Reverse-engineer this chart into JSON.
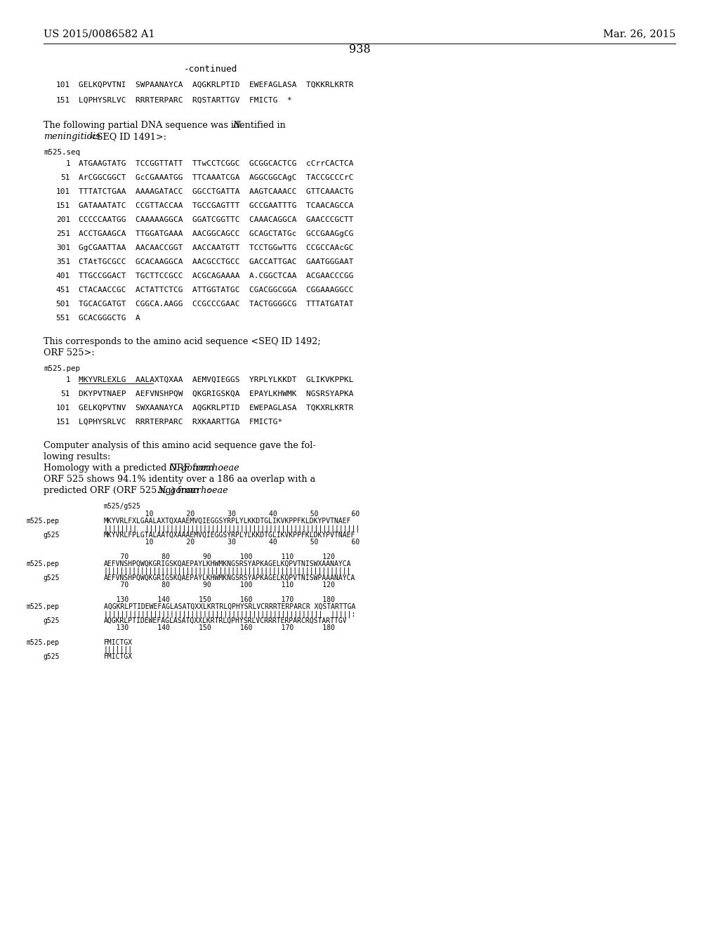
{
  "header_left": "US 2015/0086582 A1",
  "header_right": "Mar. 26, 2015",
  "page_number": "938",
  "continued": "-continued",
  "background_color": "#ffffff",
  "text_color": "#000000",
  "seq_lines_101": [
    [
      "101",
      "GELKQPVTNI  SWPAANAYCA  AQGKRLPTID  EWEFAGLASA  TQKKRLKRTR"
    ],
    [
      "151",
      "LQPHYSRLVC  RRRTERPARC  RQSTARTTGV  FMICTG  *"
    ]
  ],
  "para1_normal": "The following partial DNA sequence was identified in ",
  "para1_italic": "N.",
  "para1b_italic": "meningitidis",
  "para1b_normal": " <SEQ ID 1491>:",
  "label_seq": "m525.seq",
  "dna_lines": [
    [
      "1",
      "ATGAAGTATG  TCCGGTTATT  TTwCCTCGGC  GCGGCACTCG  cCrrCACTCA"
    ],
    [
      "51",
      "ArCGGCGGCT  GcCGAAATGG  TTCAAATCGA  AGGCGGCAgC  TACCGCCCrC"
    ],
    [
      "101",
      "TTTATCTGAA  AAAAGATACC  GGCCTGATTA  AAGTCAAACC  GTTCAAACTG"
    ],
    [
      "151",
      "GATAAATATC  CCGTTACCAA  TGCCGAGTTT  GCCGAATTTG  TCAACAGCCA"
    ],
    [
      "201",
      "CCCCCAATGG  CAAAAAGGCA  GGATCGGTTC  CAAACAGGCA  GAACCCGCTT"
    ],
    [
      "251",
      "ACCTGAAGCA  TTGGATGAAA  AACGGCAGCC  GCAGCTATGc  GCCGAAGgCG"
    ],
    [
      "301",
      "GgCGAATTAA  AACAACCGGT  AACCAATGTT  TCCTGGwTTG  CCGCCAAcGC"
    ],
    [
      "351",
      "CTAtTGCGCC  GCACAAGGCA  AACGCCTGCC  GACCATTGAC  GAATGGGAAT"
    ],
    [
      "401",
      "TTGCCGGACT  TGCTTCCGCC  ACGCAGAAAA  A.CGGCTCAA  ACGAACCCGG"
    ],
    [
      "451",
      "CTACAACCGC  ACTATTCTCG  ATTGGTATGC  CGACGGCGGA  CGGAAAGGCC"
    ],
    [
      "501",
      "TGCACGATGT  CGGCA.AAGG  CCGCCCGAAC  TACTGGGGCG  TTTATGATAT"
    ],
    [
      "551",
      "GCACGGGCTG  A"
    ]
  ],
  "para2_line1": "This corresponds to the amino acid sequence <SEQ ID 1492;",
  "para2_line2": "ORF 525>:",
  "label_pep": "m525.pep",
  "pep_lines": [
    [
      "1",
      "MKYVRLEXLG  AALAXTQXAA  AEMVQIEGGS  YRPLYLKKDT  GLIKVKPPKL",
      true
    ],
    [
      "51",
      "DKYPVTNAEP  AEFVNSHPQW  QKGRIGSKQA  EPAYLKHWMK  NGSRSYAPKA",
      false
    ],
    [
      "101",
      "GELKQPVTNV  SWXAANAYCA  AQGKRLPTID  EWEPAGLASA  TQKXRLKRTR",
      false
    ],
    [
      "151",
      "LQPHYSRLVC  RRRTERPARC  RXKAARTTGA  FMICTG*",
      false
    ]
  ],
  "comp_line1": "Computer analysis of this amino acid sequence gave the fol-",
  "comp_line2": "lowing results:",
  "comp_line3_pre": "Homology with a predicted ORF from ",
  "comp_line3_ital": "N. gonorrhoeae",
  "comp_line4": "ORF 525 shows 94.1% identity over a 186 aa overlap with a",
  "comp_line5_pre": "predicted ORF (ORF 525.ng) from ",
  "comp_line5_ital": "N. gonorrhoeae",
  "comp_line5_post": ":",
  "align_title": "m525/g525",
  "align_blocks": [
    {
      "ruler_pre": "          10        20        30        40        50        60",
      "rows": [
        [
          "m525.pep",
          "MKYVRLFXLGAALAXTQXAAEMVQIEGGSYRPLYLKKDTGLIKVKPPFKLDKYPVTNAEF"
        ],
        [
          "",
          "||||||||  ||||||||||||||||||||||||||||||||||||||||||||||||||||"
        ],
        [
          "g525",
          "MKYVRLFPLGTALAATQXAAAEMVQIEGGSYRPLYLKKDTGLIKVKPPFKLDKYPVTNAEF"
        ]
      ],
      "ruler_post": "          10        20        30        40        50        60"
    },
    {
      "ruler_pre": "    70        80        90       100       110       120",
      "rows": [
        [
          "m525.pep",
          "AEFVNSHPQWQKGRIGSKQAEPAYLKHWMKNGSRSYAPKAGELKQPVTNISWXAANAYCA"
        ],
        [
          "",
          "||||||||||||||||||||||||||||||||||||||||||||||||||||||||||||"
        ],
        [
          "g525",
          "AEFVNSHPQWQKGRIGSKQAEPAYLKHWMKNGSRSYAPKAGELKQPVTNISWPAAANAYCA"
        ]
      ],
      "ruler_post": "    70        80        90       100       110       120"
    },
    {
      "ruler_pre": "   130       140       150       160       170       180",
      "rows": [
        [
          "m525.pep",
          "AQGKRLPTIDEWEFAGLASATQXXLKRTRLQPHYSRLVCRRRTERPARCR XQSTARTTGA"
        ],
        [
          "",
          "|||||||||||||||||||||||||||||||||||||||||||||||||||||  |||||:"
        ],
        [
          "g525",
          "AQGKRLPTIDEWEFAGLASATQXXLKRTRLQPHYSRLVCRRRTERPARCRQSTARTTGV"
        ]
      ],
      "ruler_post": "   130       140       150       160       170       180"
    },
    {
      "ruler_pre": "",
      "rows": [
        [
          "m525.pep",
          "FMICTGX"
        ],
        [
          "",
          "|||||||"
        ],
        [
          "g525",
          "FMICTGX"
        ]
      ],
      "ruler_post": ""
    }
  ]
}
